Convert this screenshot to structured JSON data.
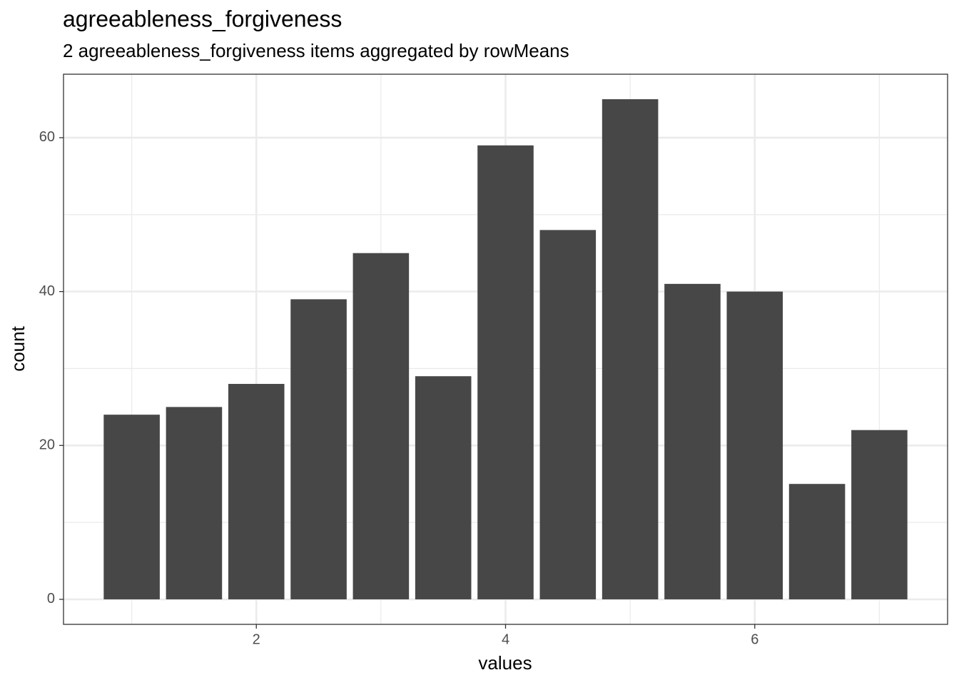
{
  "chart_data": {
    "type": "bar",
    "title": "agreeableness_forgiveness",
    "subtitle": "2 agreeableness_forgiveness items aggregated by rowMeans",
    "x_label": "values",
    "y_label": "count",
    "x": [
      1,
      1.5,
      2,
      2.5,
      3,
      3.5,
      4,
      4.5,
      5,
      5.5,
      6,
      6.5,
      7
    ],
    "values": [
      24,
      25,
      28,
      39,
      45,
      29,
      59,
      48,
      65,
      41,
      40,
      15,
      22
    ],
    "color": "#474747",
    "xlim": [
      0.4525,
      7.5475
    ],
    "xticks": [
      2,
      4,
      6
    ],
    "x_minor_ticks": [
      1,
      3,
      5,
      7
    ],
    "ylim": [
      -3.25,
      68.25
    ],
    "yticks": [
      0,
      20,
      40,
      60
    ],
    "y_minor_ticks": [
      10,
      30,
      50
    ],
    "grid": true
  }
}
